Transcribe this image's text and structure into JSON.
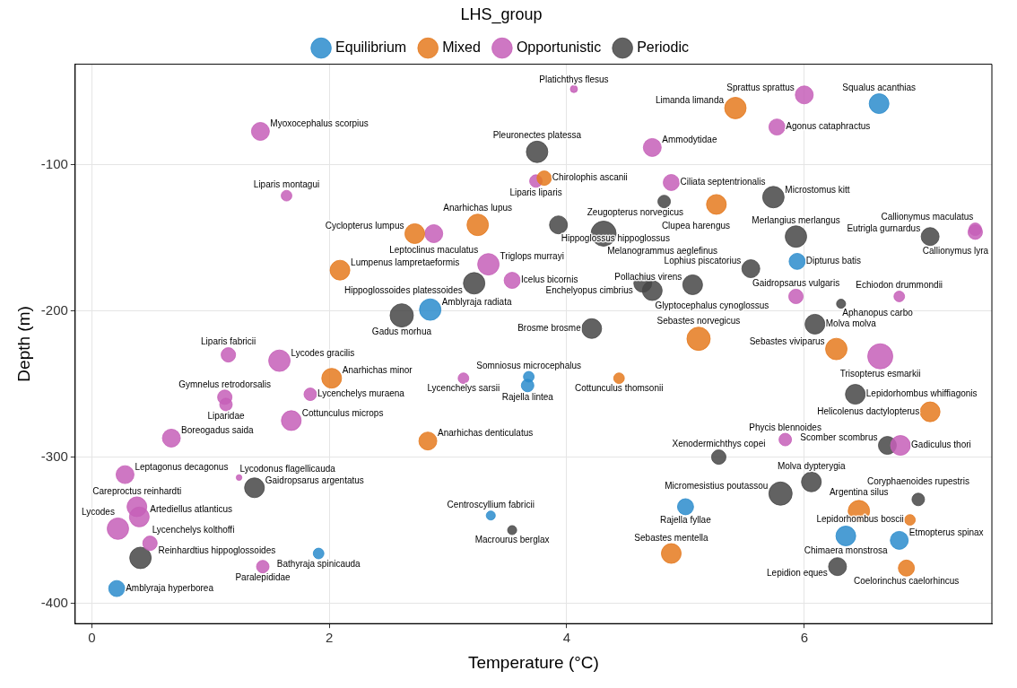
{
  "chart_data": {
    "type": "bubble",
    "legend_title": "LHS_group",
    "xlabel": "Temperature (°C)",
    "ylabel": "Depth (m)",
    "xlim": [
      -0.14,
      7.58
    ],
    "ylim": [
      -414,
      -31
    ],
    "xticks": [
      0,
      2,
      4,
      6
    ],
    "yticks": [
      -400,
      -300,
      -200,
      -100
    ],
    "grid": true,
    "legend": "top",
    "series": [
      {
        "name": "Equilibrium",
        "color": "#2b8ccc",
        "x": [
          6.63,
          5.94,
          2.85,
          3.68,
          3.67,
          3.36,
          1.91,
          0.21,
          5.0,
          6.35,
          6.8
        ],
        "values": [
          -58,
          -166,
          -199,
          -245,
          -251,
          -340,
          -366,
          -390,
          -334,
          -354,
          -357
        ],
        "sizes": [
          0.62,
          0.41,
          0.73,
          0.18,
          0.25,
          0.13,
          0.18,
          0.41,
          0.41,
          0.62,
          0.51
        ],
        "value_labels": [
          "Squalus acanthias",
          "Dipturus batis",
          "Amblyraja radiata",
          "Somniosus microcephalus",
          "Rajella lintea",
          "Centroscyllium fabricii",
          "Bathyraja spinicauda",
          "Amblyraja hyperborea",
          "Rajella fyllae",
          "Chimaera monstrosa",
          "Etmopterus spinax"
        ]
      },
      {
        "name": "Mixed",
        "color": "#e57a1f",
        "x": [
          5.42,
          3.81,
          5.26,
          2.72,
          3.25,
          2.09,
          5.11,
          6.27,
          2.02,
          4.44,
          7.06,
          2.83,
          4.88,
          6.46,
          6.89,
          6.86
        ],
        "values": [
          -61,
          -109,
          -127,
          -147,
          -141,
          -172,
          -219,
          -226,
          -246,
          -246,
          -269,
          -289,
          -366,
          -337,
          -343,
          -376
        ],
        "sizes": [
          0.73,
          0.33,
          0.62,
          0.62,
          0.73,
          0.62,
          0.86,
          0.73,
          0.62,
          0.18,
          0.62,
          0.51,
          0.62,
          0.73,
          0.18,
          0.41
        ],
        "value_labels": [
          "Limanda limanda",
          "Chirolophis ascanii",
          "Clupea harengus",
          "Cyclopterus lumpus",
          "Anarhichas lupus",
          "Lumpenus lampretaeformis",
          "Sebastes norvegicus",
          "Sebastes viviparus",
          "Anarhichas minor",
          "Cottunculus thomsonii",
          "Helicolenus dactylopterus",
          "Anarhichas denticulatus",
          "Sebastes mentella",
          "Argentina silus",
          "Lepidorhombus boscii",
          "Coelorinchus caelorhincus"
        ]
      },
      {
        "name": "Opportunistic",
        "color": "#c55fb8",
        "x": [
          4.06,
          6.0,
          5.77,
          1.42,
          4.72,
          4.88,
          3.74,
          1.64,
          2.88,
          7.44,
          7.44,
          3.34,
          3.54,
          5.93,
          6.8,
          1.15,
          1.58,
          6.64,
          3.13,
          1.12,
          1.13,
          1.84,
          1.68,
          0.67,
          5.84,
          6.81,
          0.28,
          1.24,
          0.38,
          0.4,
          0.22,
          0.49,
          1.44
        ],
        "values": [
          -48,
          -52,
          -74,
          -77,
          -88,
          -112,
          -111,
          -121,
          -147,
          -144,
          -146,
          -168,
          -179,
          -190,
          -190,
          -230,
          -234,
          -231,
          -246,
          -259,
          -264,
          -257,
          -275,
          -287,
          -288,
          -292,
          -312,
          -314,
          -334,
          -341,
          -349,
          -359,
          -375
        ],
        "sizes": [
          0.08,
          0.51,
          0.41,
          0.51,
          0.51,
          0.41,
          0.25,
          0.18,
          0.51,
          0.25,
          0.33,
          0.73,
          0.41,
          0.33,
          0.18,
          0.33,
          0.73,
          1,
          0.18,
          0.33,
          0.25,
          0.25,
          0.62,
          0.51,
          0.25,
          0.62,
          0.51,
          0.05,
          0.62,
          0.62,
          0.73,
          0.33,
          0.25
        ],
        "value_labels": [
          "Platichthys flesus",
          "Sprattus sprattus",
          "Agonus cataphractus",
          "Myoxocephalus scorpius",
          "Ammodytidae",
          "Ciliata septentrionalis",
          "Liparis liparis",
          "Liparis montagui",
          "Leptoclinus maculatus",
          "Callionymus maculatus",
          "Callionymus lyra",
          "Triglops murrayi",
          "Icelus bicornis",
          "Gaidropsarus vulgaris",
          "Echiodon drummondii",
          "Liparis fabricii",
          "Lycodes gracilis",
          "Trisopterus esmarkii",
          "Lycenchelys sarsii",
          "Gymnelus retrodorsalis",
          "Liparidae",
          "Lycenchelys muraena",
          "Cottunculus microps",
          "Boreogadus saida",
          "Phycis blennoides",
          "Gadiculus thori",
          "Leptagonus decagonus",
          "Lycodonus flagellicauda",
          "Careproctus reinhardti",
          "Artediellus atlanticus",
          "Lycodes",
          "Lycenchelys kolthoffi",
          "Paralepididae"
        ]
      },
      {
        "name": "Periodic",
        "color": "#474747",
        "x": [
          3.75,
          4.82,
          5.74,
          3.93,
          4.31,
          5.93,
          7.06,
          5.55,
          4.64,
          4.72,
          5.06,
          3.22,
          2.61,
          6.31,
          6.09,
          4.21,
          6.43,
          5.28,
          6.7,
          6.06,
          5.8,
          6.96,
          3.54,
          1.37,
          0.41,
          6.28
        ],
        "values": [
          -91,
          -125,
          -122,
          -141,
          -147,
          -149,
          -149,
          -171,
          -181,
          -186,
          -182,
          -181,
          -203,
          -195,
          -209,
          -212,
          -257,
          -300,
          -292,
          -317,
          -325,
          -329,
          -350,
          -321,
          -369,
          -375
        ],
        "sizes": [
          0.73,
          0.25,
          0.73,
          0.51,
          1,
          0.73,
          0.51,
          0.51,
          0.51,
          0.62,
          0.62,
          0.73,
          0.86,
          0.13,
          0.62,
          0.62,
          0.62,
          0.33,
          0.51,
          0.62,
          0.86,
          0.25,
          0.13,
          0.62,
          0.73,
          0.51
        ],
        "value_labels": [
          "Pleuronectes platessa",
          "Zeugopterus norvegicus",
          "Microstomus kitt",
          "Hippoglossus hippoglossus",
          "Melanogrammus aeglefinus",
          "Merlangius merlangus",
          "Eutrigla gurnardus",
          "Lophius piscatorius",
          "Enchelyopus cimbrius",
          "Glyptocephalus cynoglossus",
          "Pollachius virens",
          "Hippoglossoides platessoides",
          "Gadus morhua",
          "Aphanopus carbo",
          "Molva molva",
          "Brosme brosme",
          "Lepidorhombus whiffiagonis",
          "Xenodermichthys copei",
          "Scomber scombrus",
          "Molva dypterygia",
          "Micromesistius poutassou",
          "Coryphaenoides rupestris",
          "Macrourus berglax",
          "Gaidropsarus argentatus",
          "Reinhardtius hippoglossoides",
          "Lepidion eques"
        ]
      }
    ]
  }
}
